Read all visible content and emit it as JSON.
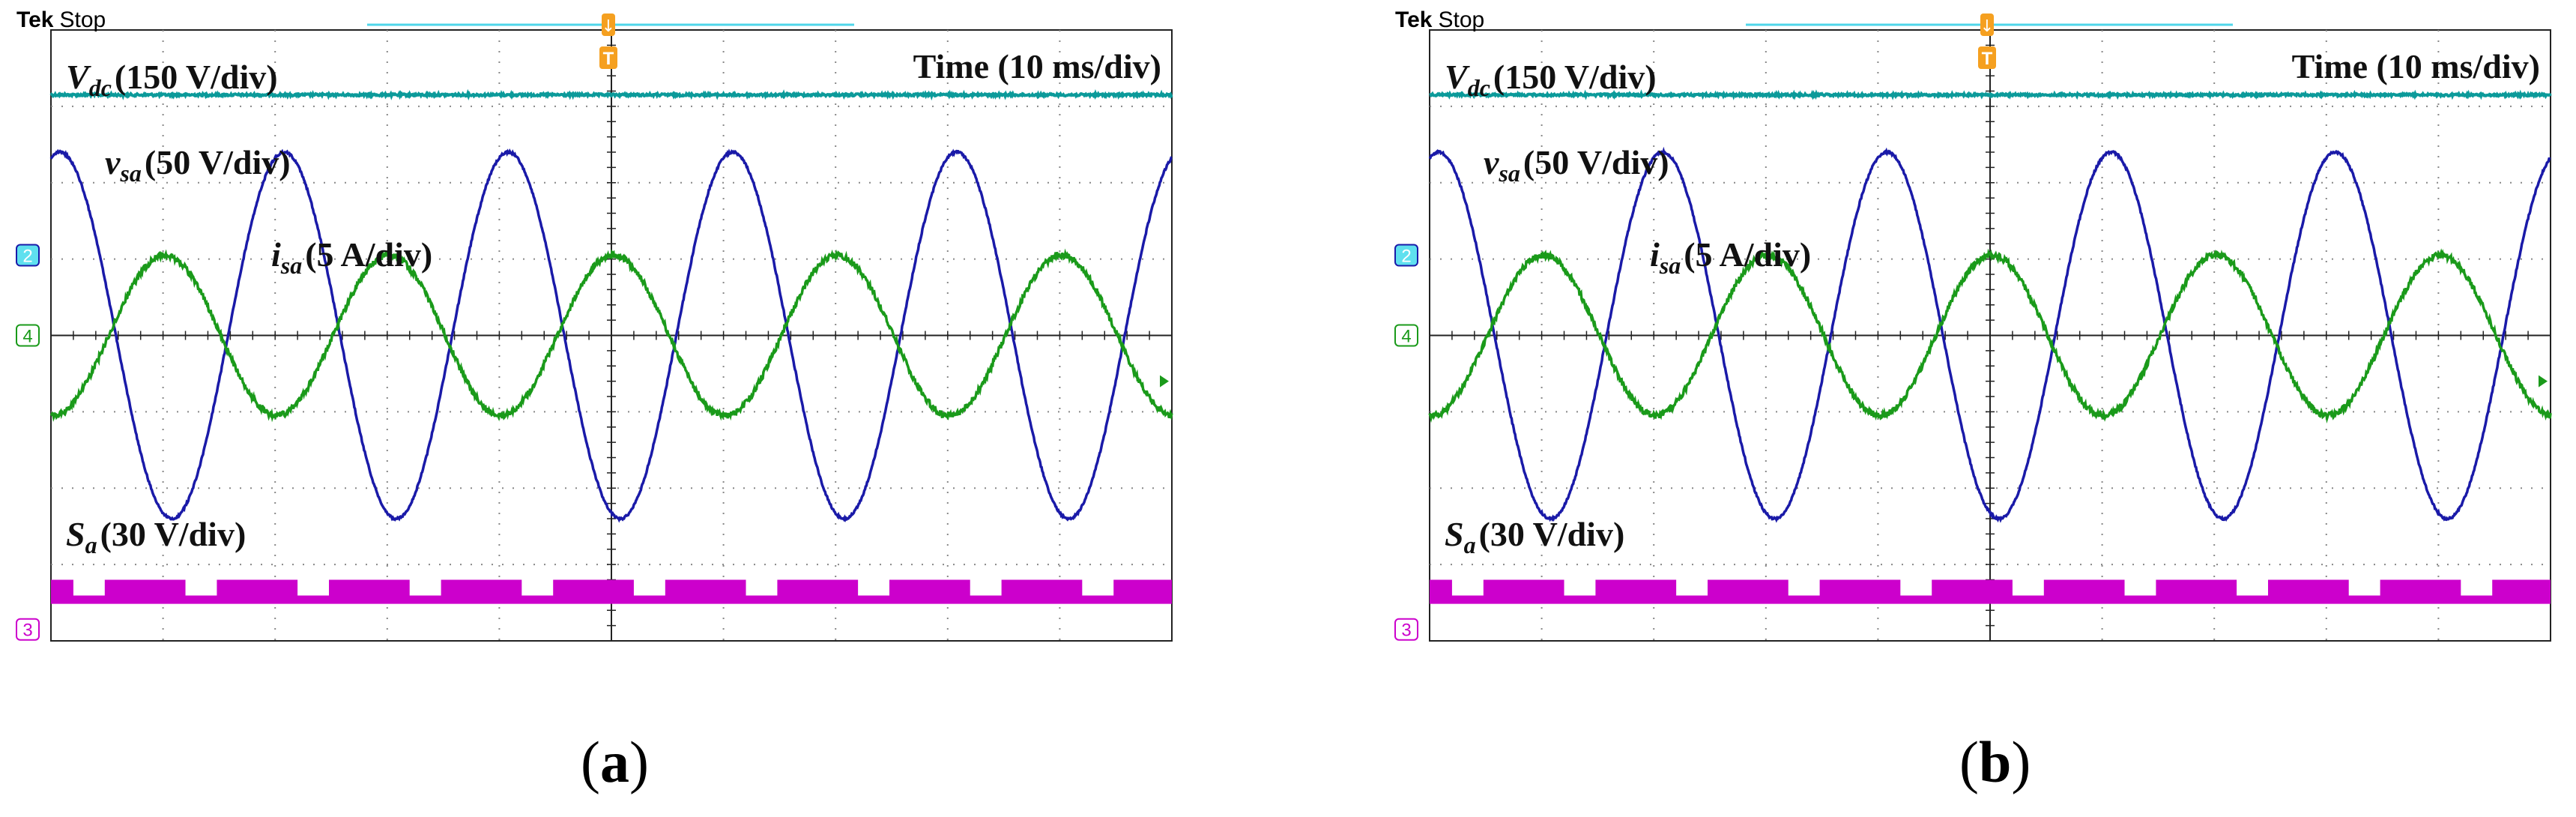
{
  "chart_data": [
    {
      "type": "line",
      "panel_label": "a",
      "status": {
        "brand": "Tek",
        "state": "Stop"
      },
      "time_label": "Time (10 ms/div)",
      "grid": true,
      "divisions": {
        "x": 10,
        "y": 8
      },
      "markers": {
        "trigger": "T",
        "position": "↓"
      },
      "series": [
        {
          "name": "V",
          "sub": "dc",
          "scale": "(150 V/div)",
          "channel": "",
          "color": "#0b9a9a",
          "shape": "dc",
          "y_div": 3.15
        },
        {
          "name": "v",
          "sub": "sa",
          "scale": "(50 V/div)",
          "channel": "2",
          "color": "#1a1aa8",
          "shape": "sine",
          "period_div": 2.0,
          "amplitude_div": 2.4,
          "offset_div": 0.0
        },
        {
          "name": "i",
          "sub": "sa",
          "scale": "(5 A/div)",
          "channel": "4",
          "color": "#1a9a1a",
          "shape": "sine",
          "period_div": 2.0,
          "amplitude_div": 1.05,
          "offset_div": 0.0
        },
        {
          "name": "S",
          "sub": "a",
          "scale": "(30 V/div)",
          "channel": "3",
          "color": "#cc00cc",
          "shape": "pwm",
          "high_div": -3.2,
          "low_div": -3.5
        }
      ]
    },
    {
      "type": "line",
      "panel_label": "b",
      "status": {
        "brand": "Tek",
        "state": "Stop"
      },
      "time_label": "Time (10 ms/div)",
      "grid": true,
      "divisions": {
        "x": 10,
        "y": 8
      },
      "markers": {
        "trigger": "T",
        "position": "↓"
      },
      "series": [
        {
          "name": "V",
          "sub": "dc",
          "scale": "(150 V/div)",
          "channel": "",
          "color": "#0b9a9a",
          "shape": "dc",
          "y_div": 3.15
        },
        {
          "name": "v",
          "sub": "sa",
          "scale": "(50 V/div)",
          "channel": "2",
          "color": "#1a1aa8",
          "shape": "sine",
          "period_div": 2.0,
          "amplitude_div": 2.4,
          "offset_div": 0.0
        },
        {
          "name": "i",
          "sub": "sa",
          "scale": "(5 A/div)",
          "channel": "4",
          "color": "#1a9a1a",
          "shape": "sine",
          "period_div": 2.0,
          "amplitude_div": 1.05,
          "offset_div": 0.0
        },
        {
          "name": "S",
          "sub": "a",
          "scale": "(30 V/div)",
          "channel": "3",
          "color": "#cc00cc",
          "shape": "pwm",
          "high_div": -3.2,
          "low_div": -3.5
        }
      ]
    }
  ]
}
